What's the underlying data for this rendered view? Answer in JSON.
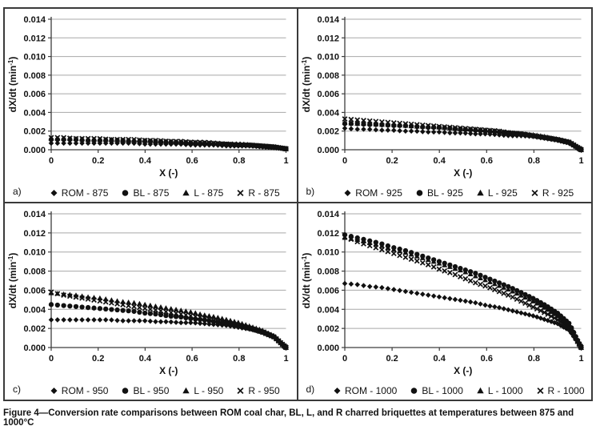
{
  "caption": "Figure 4—Conversion rate comparisons between ROM coal char, BL, L, and R charred briquettes at temperatures between 875 and 1000°C",
  "marker_color": "#111111",
  "grid_color": "#a8a8a8",
  "axis_color": "#3d3d3d",
  "chart_data": [
    {
      "type": "scatter",
      "panel_label": "a)",
      "xlabel": "X (-)",
      "ylabel": "dX/dt (min⁻¹)",
      "xlim": [
        0,
        1
      ],
      "ylim": [
        0,
        0.014
      ],
      "xticks": [
        0,
        0.2,
        0.4,
        0.6,
        0.8,
        1
      ],
      "xtick_labels": [
        "0",
        "0.2",
        "0.4",
        "0.6",
        "0.8",
        "1"
      ],
      "yticks": [
        0,
        0.002,
        0.004,
        0.006,
        0.008,
        0.01,
        0.012,
        0.014
      ],
      "ytick_labels": [
        "0.000",
        "0.002",
        "0.004",
        "0.006",
        "0.008",
        "0.010",
        "0.012",
        "0.014"
      ],
      "grid": "horizontal",
      "legend_position": "bottom",
      "x": [
        0,
        0.05,
        0.1,
        0.15,
        0.2,
        0.25,
        0.3,
        0.35,
        0.4,
        0.45,
        0.5,
        0.55,
        0.6,
        0.65,
        0.7,
        0.75,
        0.8,
        0.85,
        0.9,
        0.95,
        1
      ],
      "series": [
        {
          "name": "ROM - 875",
          "marker": "diamond",
          "values": [
            0.0007,
            0.0007,
            0.0007,
            0.0007,
            0.0007,
            0.0007,
            0.0007,
            0.0007,
            0.0006,
            0.0006,
            0.0006,
            0.0006,
            0.0005,
            0.0005,
            0.0005,
            0.0004,
            0.0004,
            0.0004,
            0.0003,
            0.0002,
            0.0001
          ]
        },
        {
          "name": "BL - 875",
          "marker": "circle",
          "values": [
            0.0011,
            0.0011,
            0.0011,
            0.001,
            0.001,
            0.001,
            0.001,
            0.0009,
            0.0009,
            0.0009,
            0.0008,
            0.0008,
            0.0007,
            0.0007,
            0.0006,
            0.0006,
            0.0005,
            0.0005,
            0.0004,
            0.0003,
            0.0001
          ]
        },
        {
          "name": "L - 875",
          "marker": "triangle",
          "values": [
            0.0012,
            0.0012,
            0.0012,
            0.0011,
            0.0011,
            0.0011,
            0.001,
            0.001,
            0.001,
            0.0009,
            0.0009,
            0.0008,
            0.0008,
            0.0007,
            0.0007,
            0.0006,
            0.0005,
            0.0005,
            0.0004,
            0.0003,
            0.0001
          ]
        },
        {
          "name": "R - 875",
          "marker": "x",
          "values": [
            0.0013,
            0.0013,
            0.0012,
            0.0012,
            0.0012,
            0.0011,
            0.0011,
            0.0011,
            0.001,
            0.001,
            0.0009,
            0.0009,
            0.0008,
            0.0008,
            0.0007,
            0.0006,
            0.0006,
            0.0005,
            0.0004,
            0.0003,
            0.0001
          ]
        }
      ]
    },
    {
      "type": "scatter",
      "panel_label": "b)",
      "xlabel": "X (-)",
      "ylabel": "dX/dt (min⁻¹)",
      "xlim": [
        0,
        1
      ],
      "ylim": [
        0,
        0.014
      ],
      "xticks": [
        0,
        0.2,
        0.4,
        0.6,
        0.8,
        1
      ],
      "xtick_labels": [
        "0",
        "0.2",
        "0.4",
        "0.6",
        "0.8",
        "1"
      ],
      "yticks": [
        0,
        0.002,
        0.004,
        0.006,
        0.008,
        0.01,
        0.012,
        0.014
      ],
      "ytick_labels": [
        "0.000",
        "0.002",
        "0.004",
        "0.006",
        "0.008",
        "0.010",
        "0.012",
        "0.014"
      ],
      "grid": "horizontal",
      "legend_position": "bottom",
      "x": [
        0,
        0.05,
        0.1,
        0.15,
        0.2,
        0.25,
        0.3,
        0.35,
        0.4,
        0.45,
        0.5,
        0.55,
        0.6,
        0.65,
        0.7,
        0.75,
        0.8,
        0.85,
        0.9,
        0.95,
        1
      ],
      "series": [
        {
          "name": "ROM - 925",
          "marker": "diamond",
          "values": [
            0.0023,
            0.0022,
            0.0022,
            0.0021,
            0.0021,
            0.002,
            0.002,
            0.0019,
            0.0019,
            0.0018,
            0.0018,
            0.0017,
            0.0017,
            0.0016,
            0.0015,
            0.0015,
            0.0014,
            0.0012,
            0.001,
            0.0007,
            0.0
          ]
        },
        {
          "name": "BL - 925",
          "marker": "circle",
          "values": [
            0.0028,
            0.0028,
            0.0027,
            0.0027,
            0.0026,
            0.0026,
            0.0025,
            0.0024,
            0.0024,
            0.0023,
            0.0022,
            0.0021,
            0.002,
            0.0019,
            0.0018,
            0.0017,
            0.0015,
            0.0013,
            0.0011,
            0.0008,
            0.0
          ]
        },
        {
          "name": "L - 925",
          "marker": "triangle",
          "values": [
            0.0029,
            0.0028,
            0.0028,
            0.0027,
            0.0027,
            0.0026,
            0.0025,
            0.0025,
            0.0024,
            0.0023,
            0.0022,
            0.0022,
            0.0021,
            0.002,
            0.0018,
            0.0017,
            0.0016,
            0.0014,
            0.0011,
            0.0008,
            0.0
          ]
        },
        {
          "name": "R - 925",
          "marker": "x",
          "values": [
            0.0033,
            0.0032,
            0.0031,
            0.003,
            0.0029,
            0.0028,
            0.0027,
            0.0026,
            0.0025,
            0.0024,
            0.0023,
            0.0022,
            0.0021,
            0.002,
            0.0018,
            0.0017,
            0.0015,
            0.0013,
            0.0011,
            0.0008,
            0.0
          ]
        }
      ]
    },
    {
      "type": "scatter",
      "panel_label": "c)",
      "xlabel": "X (-)",
      "ylabel": "dX/dt (min⁻¹)",
      "xlim": [
        0,
        1
      ],
      "ylim": [
        0,
        0.014
      ],
      "xticks": [
        0,
        0.2,
        0.4,
        0.6,
        0.8,
        1
      ],
      "xtick_labels": [
        "0",
        "0.2",
        "0.4",
        "0.6",
        "0.8",
        "1"
      ],
      "yticks": [
        0,
        0.002,
        0.004,
        0.006,
        0.008,
        0.01,
        0.012,
        0.014
      ],
      "ytick_labels": [
        "0.000",
        "0.002",
        "0.004",
        "0.006",
        "0.008",
        "0.010",
        "0.012",
        "0.014"
      ],
      "grid": "horizontal",
      "legend_position": "bottom",
      "x": [
        0,
        0.05,
        0.1,
        0.15,
        0.2,
        0.25,
        0.3,
        0.35,
        0.4,
        0.45,
        0.5,
        0.55,
        0.6,
        0.65,
        0.7,
        0.75,
        0.8,
        0.85,
        0.9,
        0.95,
        1
      ],
      "series": [
        {
          "name": "ROM - 950",
          "marker": "diamond",
          "values": [
            0.0029,
            0.0029,
            0.0029,
            0.0029,
            0.0029,
            0.0029,
            0.0028,
            0.0028,
            0.0028,
            0.0027,
            0.0027,
            0.0026,
            0.0026,
            0.0025,
            0.0024,
            0.0023,
            0.0021,
            0.0019,
            0.0016,
            0.0011,
            0.0
          ]
        },
        {
          "name": "BL - 950",
          "marker": "circle",
          "values": [
            0.0045,
            0.0044,
            0.0043,
            0.0042,
            0.0041,
            0.004,
            0.0039,
            0.0038,
            0.0036,
            0.0035,
            0.0033,
            0.0032,
            0.003,
            0.0029,
            0.0027,
            0.0025,
            0.0023,
            0.002,
            0.0016,
            0.0011,
            0.0
          ]
        },
        {
          "name": "L - 950",
          "marker": "triangle",
          "values": [
            0.0057,
            0.0056,
            0.0055,
            0.0053,
            0.0052,
            0.005,
            0.0048,
            0.0047,
            0.0045,
            0.0043,
            0.0041,
            0.0039,
            0.0037,
            0.0034,
            0.0032,
            0.0029,
            0.0026,
            0.0022,
            0.0018,
            0.0012,
            0.0
          ]
        },
        {
          "name": "R - 950",
          "marker": "x",
          "values": [
            0.0058,
            0.0055,
            0.0053,
            0.0051,
            0.0049,
            0.0047,
            0.0045,
            0.0043,
            0.0041,
            0.0039,
            0.0037,
            0.0035,
            0.0033,
            0.0031,
            0.0028,
            0.0026,
            0.0023,
            0.002,
            0.0016,
            0.0011,
            0.0
          ]
        }
      ]
    },
    {
      "type": "scatter",
      "panel_label": "d)",
      "xlabel": "X (-)",
      "ylabel": "dX/dt (min⁻¹)",
      "xlim": [
        0,
        1
      ],
      "ylim": [
        0,
        0.014
      ],
      "xticks": [
        0,
        0.2,
        0.4,
        0.6,
        0.8,
        1
      ],
      "xtick_labels": [
        "0",
        "0.2",
        "0.4",
        "0.6",
        "0.8",
        "1"
      ],
      "yticks": [
        0,
        0.002,
        0.004,
        0.006,
        0.008,
        0.01,
        0.012,
        0.014
      ],
      "ytick_labels": [
        "0.000",
        "0.002",
        "0.004",
        "0.006",
        "0.008",
        "0.010",
        "0.012",
        "0.014"
      ],
      "grid": "horizontal",
      "legend_position": "bottom",
      "x": [
        0,
        0.05,
        0.1,
        0.15,
        0.2,
        0.25,
        0.3,
        0.35,
        0.4,
        0.45,
        0.5,
        0.55,
        0.6,
        0.65,
        0.7,
        0.75,
        0.8,
        0.85,
        0.9,
        0.95,
        1
      ],
      "series": [
        {
          "name": "ROM - 1000",
          "marker": "diamond",
          "values": [
            0.0067,
            0.0066,
            0.0064,
            0.0063,
            0.0061,
            0.0059,
            0.0057,
            0.0055,
            0.0053,
            0.0051,
            0.0049,
            0.0047,
            0.0044,
            0.0042,
            0.0039,
            0.0036,
            0.0033,
            0.0029,
            0.0025,
            0.0018,
            0.0
          ]
        },
        {
          "name": "BL - 1000",
          "marker": "circle",
          "values": [
            0.0118,
            0.0115,
            0.0112,
            0.0109,
            0.0105,
            0.0102,
            0.0098,
            0.0094,
            0.009,
            0.0086,
            0.0082,
            0.0078,
            0.0073,
            0.0068,
            0.0063,
            0.0057,
            0.0051,
            0.0044,
            0.0036,
            0.0025,
            0.0
          ]
        },
        {
          "name": "L - 1000",
          "marker": "triangle",
          "values": [
            0.0115,
            0.0113,
            0.011,
            0.0107,
            0.0103,
            0.01,
            0.0096,
            0.0092,
            0.0088,
            0.0084,
            0.008,
            0.0075,
            0.007,
            0.0065,
            0.006,
            0.0054,
            0.0048,
            0.0041,
            0.0033,
            0.0023,
            0.0
          ]
        },
        {
          "name": "R - 1000",
          "marker": "x",
          "values": [
            0.0116,
            0.0111,
            0.0107,
            0.0103,
            0.0099,
            0.0095,
            0.0091,
            0.0087,
            0.0082,
            0.0078,
            0.0073,
            0.0068,
            0.0064,
            0.0059,
            0.0054,
            0.0048,
            0.0042,
            0.0036,
            0.0029,
            0.0021,
            0.0
          ]
        }
      ]
    }
  ]
}
